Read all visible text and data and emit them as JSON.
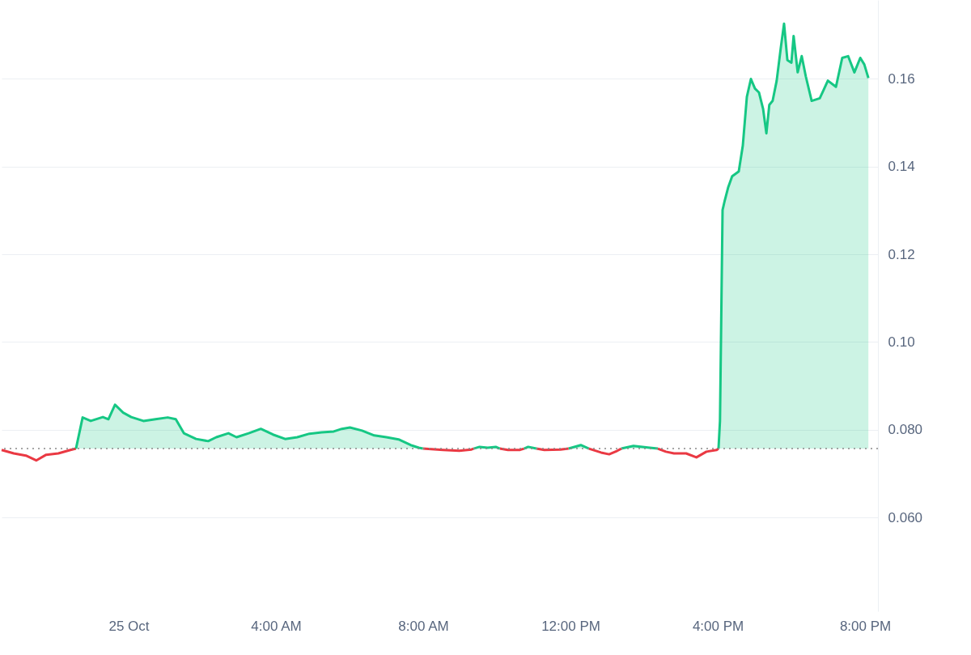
{
  "chart_data": {
    "type": "line",
    "xlim": [
      -3.45,
      20.35
    ],
    "xticks": [
      {
        "value": 0,
        "label": "25 Oct"
      },
      {
        "value": 4,
        "label": "4:00 AM"
      },
      {
        "value": 8,
        "label": "8:00 AM"
      },
      {
        "value": 12,
        "label": "12:00 PM"
      },
      {
        "value": 16,
        "label": "4:00 PM"
      },
      {
        "value": 20,
        "label": "8:00 PM"
      }
    ],
    "ylim": [
      0.0386,
      0.178
    ],
    "yticks": [
      {
        "value": 0.06,
        "label": "0.060"
      },
      {
        "value": 0.08,
        "label": "0.080"
      },
      {
        "value": 0.1,
        "label": "0.10"
      },
      {
        "value": 0.12,
        "label": "0.12"
      },
      {
        "value": 0.14,
        "label": "0.14"
      },
      {
        "value": 0.16,
        "label": "0.16"
      }
    ],
    "grid": "y",
    "ref_lines": [
      {
        "axis": "y",
        "value": 0.0757,
        "color": "#888888",
        "line_style": "dotted"
      }
    ],
    "series": [
      {
        "color": "#ea3943",
        "x": [
          -3.45,
          -3.12,
          -2.79,
          -2.51,
          -2.24,
          -1.91,
          -1.58,
          -1.43,
          3.0,
          7.99,
          8.54,
          8.98,
          9.31,
          9.37,
          9.7,
          10.08,
          10.3,
          10.63,
          10.74,
          10.9,
          11.07,
          11.29,
          11.73,
          11.95,
          12.2,
          12.5,
          12.83,
          13.05,
          13.27,
          13.38,
          13.9,
          14.37,
          14.59,
          14.81,
          15.14,
          15.42,
          15.69,
          15.97,
          16.02
        ],
        "values": [
          0.0754,
          0.0746,
          0.0741,
          0.073,
          0.0743,
          0.0746,
          0.0754,
          0.0757,
          null,
          0.0757,
          0.0754,
          0.0752,
          0.0755,
          0.0757,
          null,
          0.0757,
          0.0754,
          0.0754,
          0.0757,
          null,
          0.0757,
          0.0754,
          0.0755,
          0.0757,
          null,
          0.0757,
          0.0748,
          0.0744,
          0.0752,
          0.0757,
          null,
          0.0757,
          0.075,
          0.0746,
          0.0746,
          0.0737,
          0.075,
          0.0754,
          0.0757
        ]
      },
      {
        "type": "area",
        "color": "#16c784",
        "x": [
          -1.43,
          -1.25,
          -1.03,
          -0.7,
          -0.55,
          -0.37,
          -0.15,
          0.07,
          0.4,
          0.73,
          1.06,
          1.28,
          1.5,
          1.83,
          2.16,
          2.38,
          2.71,
          2.93,
          3.26,
          3.59,
          3.92,
          4.25,
          4.58,
          4.91,
          5.24,
          5.57,
          5.79,
          6.01,
          6.34,
          6.67,
          7.0,
          7.33,
          7.66,
          7.88,
          7.99,
          8.5,
          9.37,
          9.53,
          9.75,
          9.97,
          10.08,
          10.4,
          10.74,
          10.85,
          11.07,
          11.5,
          11.95,
          12.28,
          12.39,
          12.5,
          13.0,
          13.38,
          13.71,
          14.15,
          14.37,
          15.0,
          16.02,
          16.06,
          16.13,
          16.19,
          16.28,
          16.39,
          16.57,
          16.68,
          16.79,
          16.9,
          17.01,
          17.12,
          17.23,
          17.32,
          17.4,
          17.49,
          17.6,
          17.71,
          17.8,
          17.89,
          18.0,
          18.06,
          18.17,
          18.28,
          18.39,
          18.55,
          18.77,
          18.99,
          19.21,
          19.38,
          19.54,
          19.71,
          19.87,
          19.98,
          20.09
        ],
        "values": [
          0.0757,
          0.0828,
          0.082,
          0.0829,
          0.0824,
          0.0857,
          0.0839,
          0.0829,
          0.082,
          0.0824,
          0.0828,
          0.0824,
          0.0792,
          0.0779,
          0.0774,
          0.0783,
          0.0792,
          0.0783,
          0.0792,
          0.0802,
          0.0789,
          0.0779,
          0.0783,
          0.0791,
          0.0794,
          0.0796,
          0.0802,
          0.0805,
          0.0798,
          0.0787,
          0.0783,
          0.0778,
          0.0765,
          0.0759,
          0.0757,
          null,
          0.0757,
          0.0761,
          0.0759,
          0.0761,
          0.0757,
          null,
          0.0757,
          0.0761,
          0.0757,
          null,
          0.0757,
          0.0765,
          0.0761,
          0.0757,
          null,
          0.0757,
          0.0763,
          0.0759,
          0.0757,
          null,
          0.0757,
          0.082,
          0.1301,
          0.1323,
          0.1352,
          0.1378,
          0.1389,
          0.1448,
          0.1559,
          0.16,
          0.1578,
          0.1569,
          0.1532,
          0.1476,
          0.1541,
          0.155,
          0.1596,
          0.167,
          0.1726,
          0.1643,
          0.1637,
          0.1698,
          0.1615,
          0.1652,
          0.1606,
          0.155,
          0.1556,
          0.1596,
          0.1582,
          0.1648,
          0.1652,
          0.1615,
          0.1648,
          0.1633,
          0.1602
        ]
      }
    ]
  }
}
